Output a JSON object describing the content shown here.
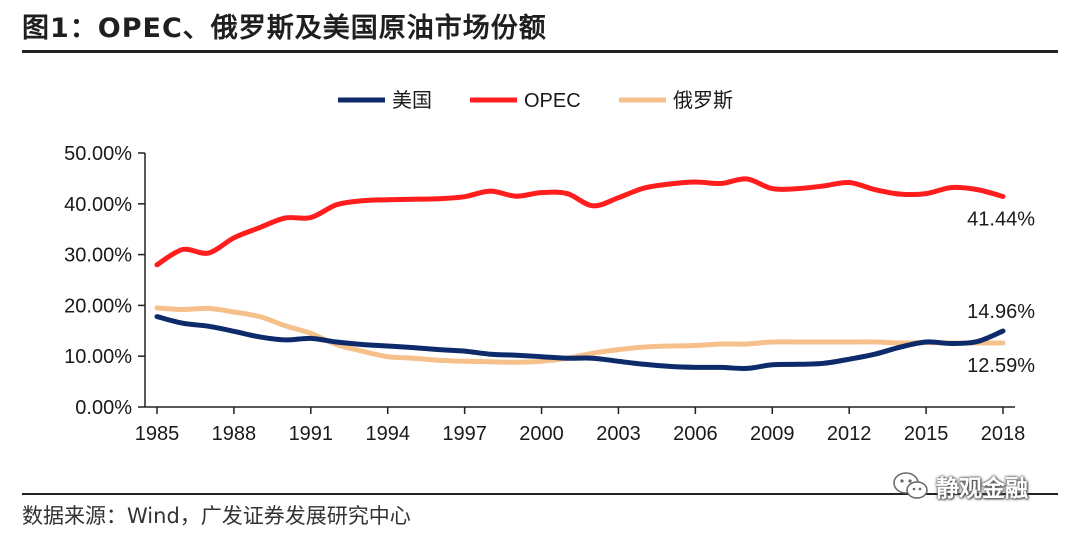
{
  "title": "图1：OPEC、俄罗斯及美国原油市场份额",
  "source": "数据来源：Wind，广发证券发展研究中心",
  "watermark": {
    "text": "静观金融",
    "icon": "wechat-icon"
  },
  "colors": {
    "usa": "#0d2a6b",
    "opec": "#ff1d1d",
    "russia": "#f6c08a",
    "axis": "#222222",
    "text": "#1a1a1a"
  },
  "chart_data": {
    "type": "line",
    "title": "",
    "xlabel": "",
    "ylabel": "",
    "x": [
      1985,
      1986,
      1987,
      1988,
      1989,
      1990,
      1991,
      1992,
      1993,
      1994,
      1995,
      1996,
      1997,
      1998,
      1999,
      2000,
      2001,
      2002,
      2003,
      2004,
      2005,
      2006,
      2007,
      2008,
      2009,
      2010,
      2011,
      2012,
      2013,
      2014,
      2015,
      2016,
      2017,
      2018
    ],
    "xticks": [
      "1985",
      "1988",
      "1991",
      "1994",
      "1997",
      "2000",
      "2003",
      "2006",
      "2009",
      "2012",
      "2015",
      "2018"
    ],
    "ylim": [
      0,
      50
    ],
    "yticks": [
      "0.00%",
      "10.00%",
      "20.00%",
      "30.00%",
      "40.00%",
      "50.00%"
    ],
    "grid": false,
    "legend_position": "top",
    "series": [
      {
        "name": "美国",
        "key": "usa",
        "values": [
          17.8,
          16.5,
          15.9,
          14.9,
          13.8,
          13.2,
          13.5,
          12.8,
          12.3,
          12.0,
          11.7,
          11.3,
          11.0,
          10.4,
          10.2,
          9.9,
          9.6,
          9.6,
          9.0,
          8.4,
          8.0,
          7.8,
          7.8,
          7.6,
          8.3,
          8.4,
          8.6,
          9.4,
          10.4,
          11.8,
          12.8,
          12.5,
          12.9,
          14.96
        ]
      },
      {
        "name": "OPEC",
        "key": "opec",
        "values": [
          28.0,
          31.0,
          30.3,
          33.3,
          35.3,
          37.2,
          37.3,
          39.8,
          40.6,
          40.8,
          40.9,
          41.0,
          41.4,
          42.5,
          41.5,
          42.2,
          42.0,
          39.6,
          41.2,
          43.1,
          43.9,
          44.3,
          44.0,
          44.9,
          43.0,
          43.0,
          43.5,
          44.2,
          42.8,
          41.9,
          42.0,
          43.2,
          42.8,
          41.44
        ]
      },
      {
        "name": "俄罗斯",
        "key": "russia",
        "values": [
          19.5,
          19.2,
          19.4,
          18.7,
          17.8,
          16.0,
          14.5,
          12.3,
          11.0,
          9.9,
          9.6,
          9.2,
          9.0,
          8.9,
          8.8,
          9.0,
          9.6,
          10.6,
          11.3,
          11.8,
          12.0,
          12.1,
          12.4,
          12.4,
          12.8,
          12.8,
          12.8,
          12.8,
          12.8,
          12.6,
          12.7,
          12.6,
          12.6,
          12.59
        ]
      }
    ],
    "end_labels": [
      {
        "series": "opec",
        "text": "41.44%"
      },
      {
        "series": "usa",
        "text": "14.96%"
      },
      {
        "series": "russia",
        "text": "12.59%"
      }
    ]
  }
}
